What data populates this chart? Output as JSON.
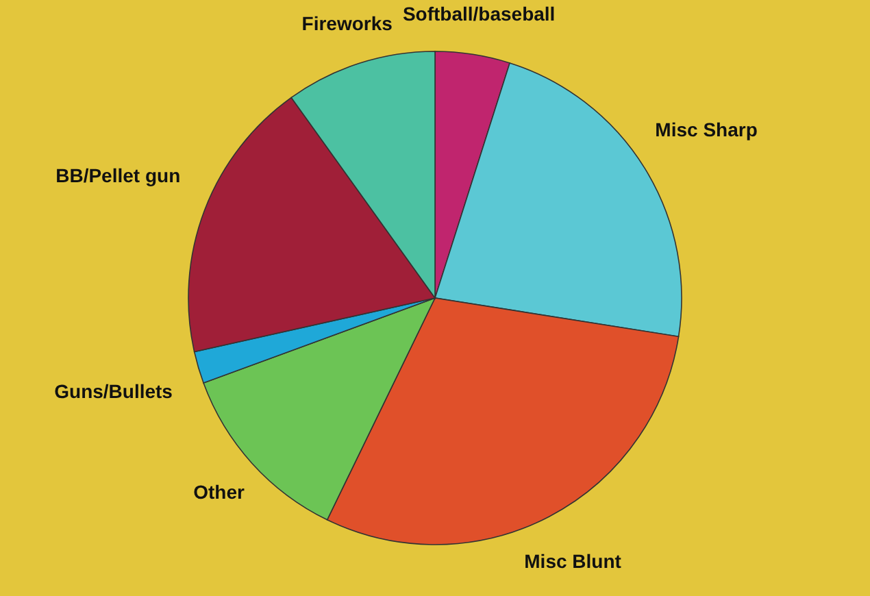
{
  "chart_data": {
    "type": "pie",
    "categories": [
      "Softball/baseball",
      "Misc Sharp",
      "Misc Blunt",
      "Other",
      "Guns/Bullets",
      "BB/Pellet gun",
      "Fireworks"
    ],
    "values": [
      4.9,
      22.6,
      29.7,
      12.2,
      2.1,
      18.6,
      9.9
    ],
    "colors": [
      "#c0256e",
      "#5bc8d4",
      "#e0502a",
      "#6cc455",
      "#1fa8d8",
      "#a01f38",
      "#4cc1a2"
    ],
    "legend": false
  }
}
